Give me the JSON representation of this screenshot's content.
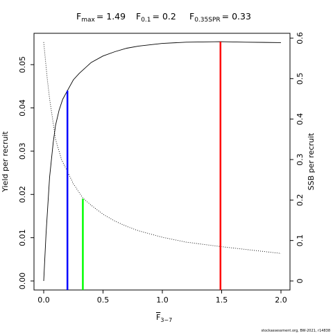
{
  "chart_data": {
    "type": "line",
    "title": {
      "fmax": {
        "label": "F",
        "sub": "max",
        "value": "= 1.49"
      },
      "f01": {
        "label": "F",
        "sub": "0.1",
        "value": "= 0.2"
      },
      "fspr": {
        "label": "F",
        "sub": "0.35SPR",
        "value": "= 0.33"
      }
    },
    "xlabel": {
      "main": "F",
      "sub": "3−7"
    },
    "ylabel": "Yield per recruit",
    "y2label": "SSB per recruit",
    "credit": "stockassessment.org, BW-2021, r14838",
    "xlim": [
      0,
      2.0
    ],
    "ylim": [
      0,
      0.055
    ],
    "y2lim": [
      0,
      0.6
    ],
    "xticks": [
      "0.0",
      "0.5",
      "1.0",
      "1.5",
      "2.0"
    ],
    "yticks": [
      "0.00",
      "0.01",
      "0.02",
      "0.03",
      "0.04",
      "0.05"
    ],
    "y2ticks": [
      "0",
      "0.1",
      "0.2",
      "0.3",
      "0.4",
      "0.5",
      "0.6"
    ],
    "series": [
      {
        "axis": "left",
        "style": "solid",
        "color": "#000000",
        "x": [
          0,
          0.02,
          0.05,
          0.08,
          0.1,
          0.13,
          0.16,
          0.2,
          0.25,
          0.3,
          0.4,
          0.5,
          0.6,
          0.7,
          0.8,
          1.0,
          1.2,
          1.49,
          1.7,
          2.0
        ],
        "y": [
          0.0,
          0.011,
          0.024,
          0.032,
          0.036,
          0.0395,
          0.042,
          0.044,
          0.0465,
          0.048,
          0.0505,
          0.052,
          0.053,
          0.0538,
          0.0543,
          0.0549,
          0.0552,
          0.0553,
          0.0552,
          0.0551
        ]
      },
      {
        "axis": "right",
        "style": "dotted",
        "color": "#000000",
        "x": [
          0,
          0.03,
          0.05,
          0.08,
          0.1,
          0.15,
          0.2,
          0.25,
          0.33,
          0.4,
          0.5,
          0.6,
          0.7,
          0.8,
          1.0,
          1.2,
          1.49,
          1.7,
          2.0
        ],
        "y": [
          0.59,
          0.5,
          0.45,
          0.39,
          0.35,
          0.3,
          0.27,
          0.24,
          0.205,
          0.187,
          0.165,
          0.148,
          0.135,
          0.124,
          0.108,
          0.096,
          0.085,
          0.078,
          0.068
        ]
      }
    ],
    "vlines": [
      {
        "x": 0.2,
        "y": 0.044,
        "color": "#0000ff"
      },
      {
        "x": 0.33,
        "y": 0.019,
        "color": "#00ff00"
      },
      {
        "x": 1.49,
        "y": 0.0553,
        "color": "#ff0000"
      }
    ],
    "grid": false,
    "legend": "none"
  }
}
